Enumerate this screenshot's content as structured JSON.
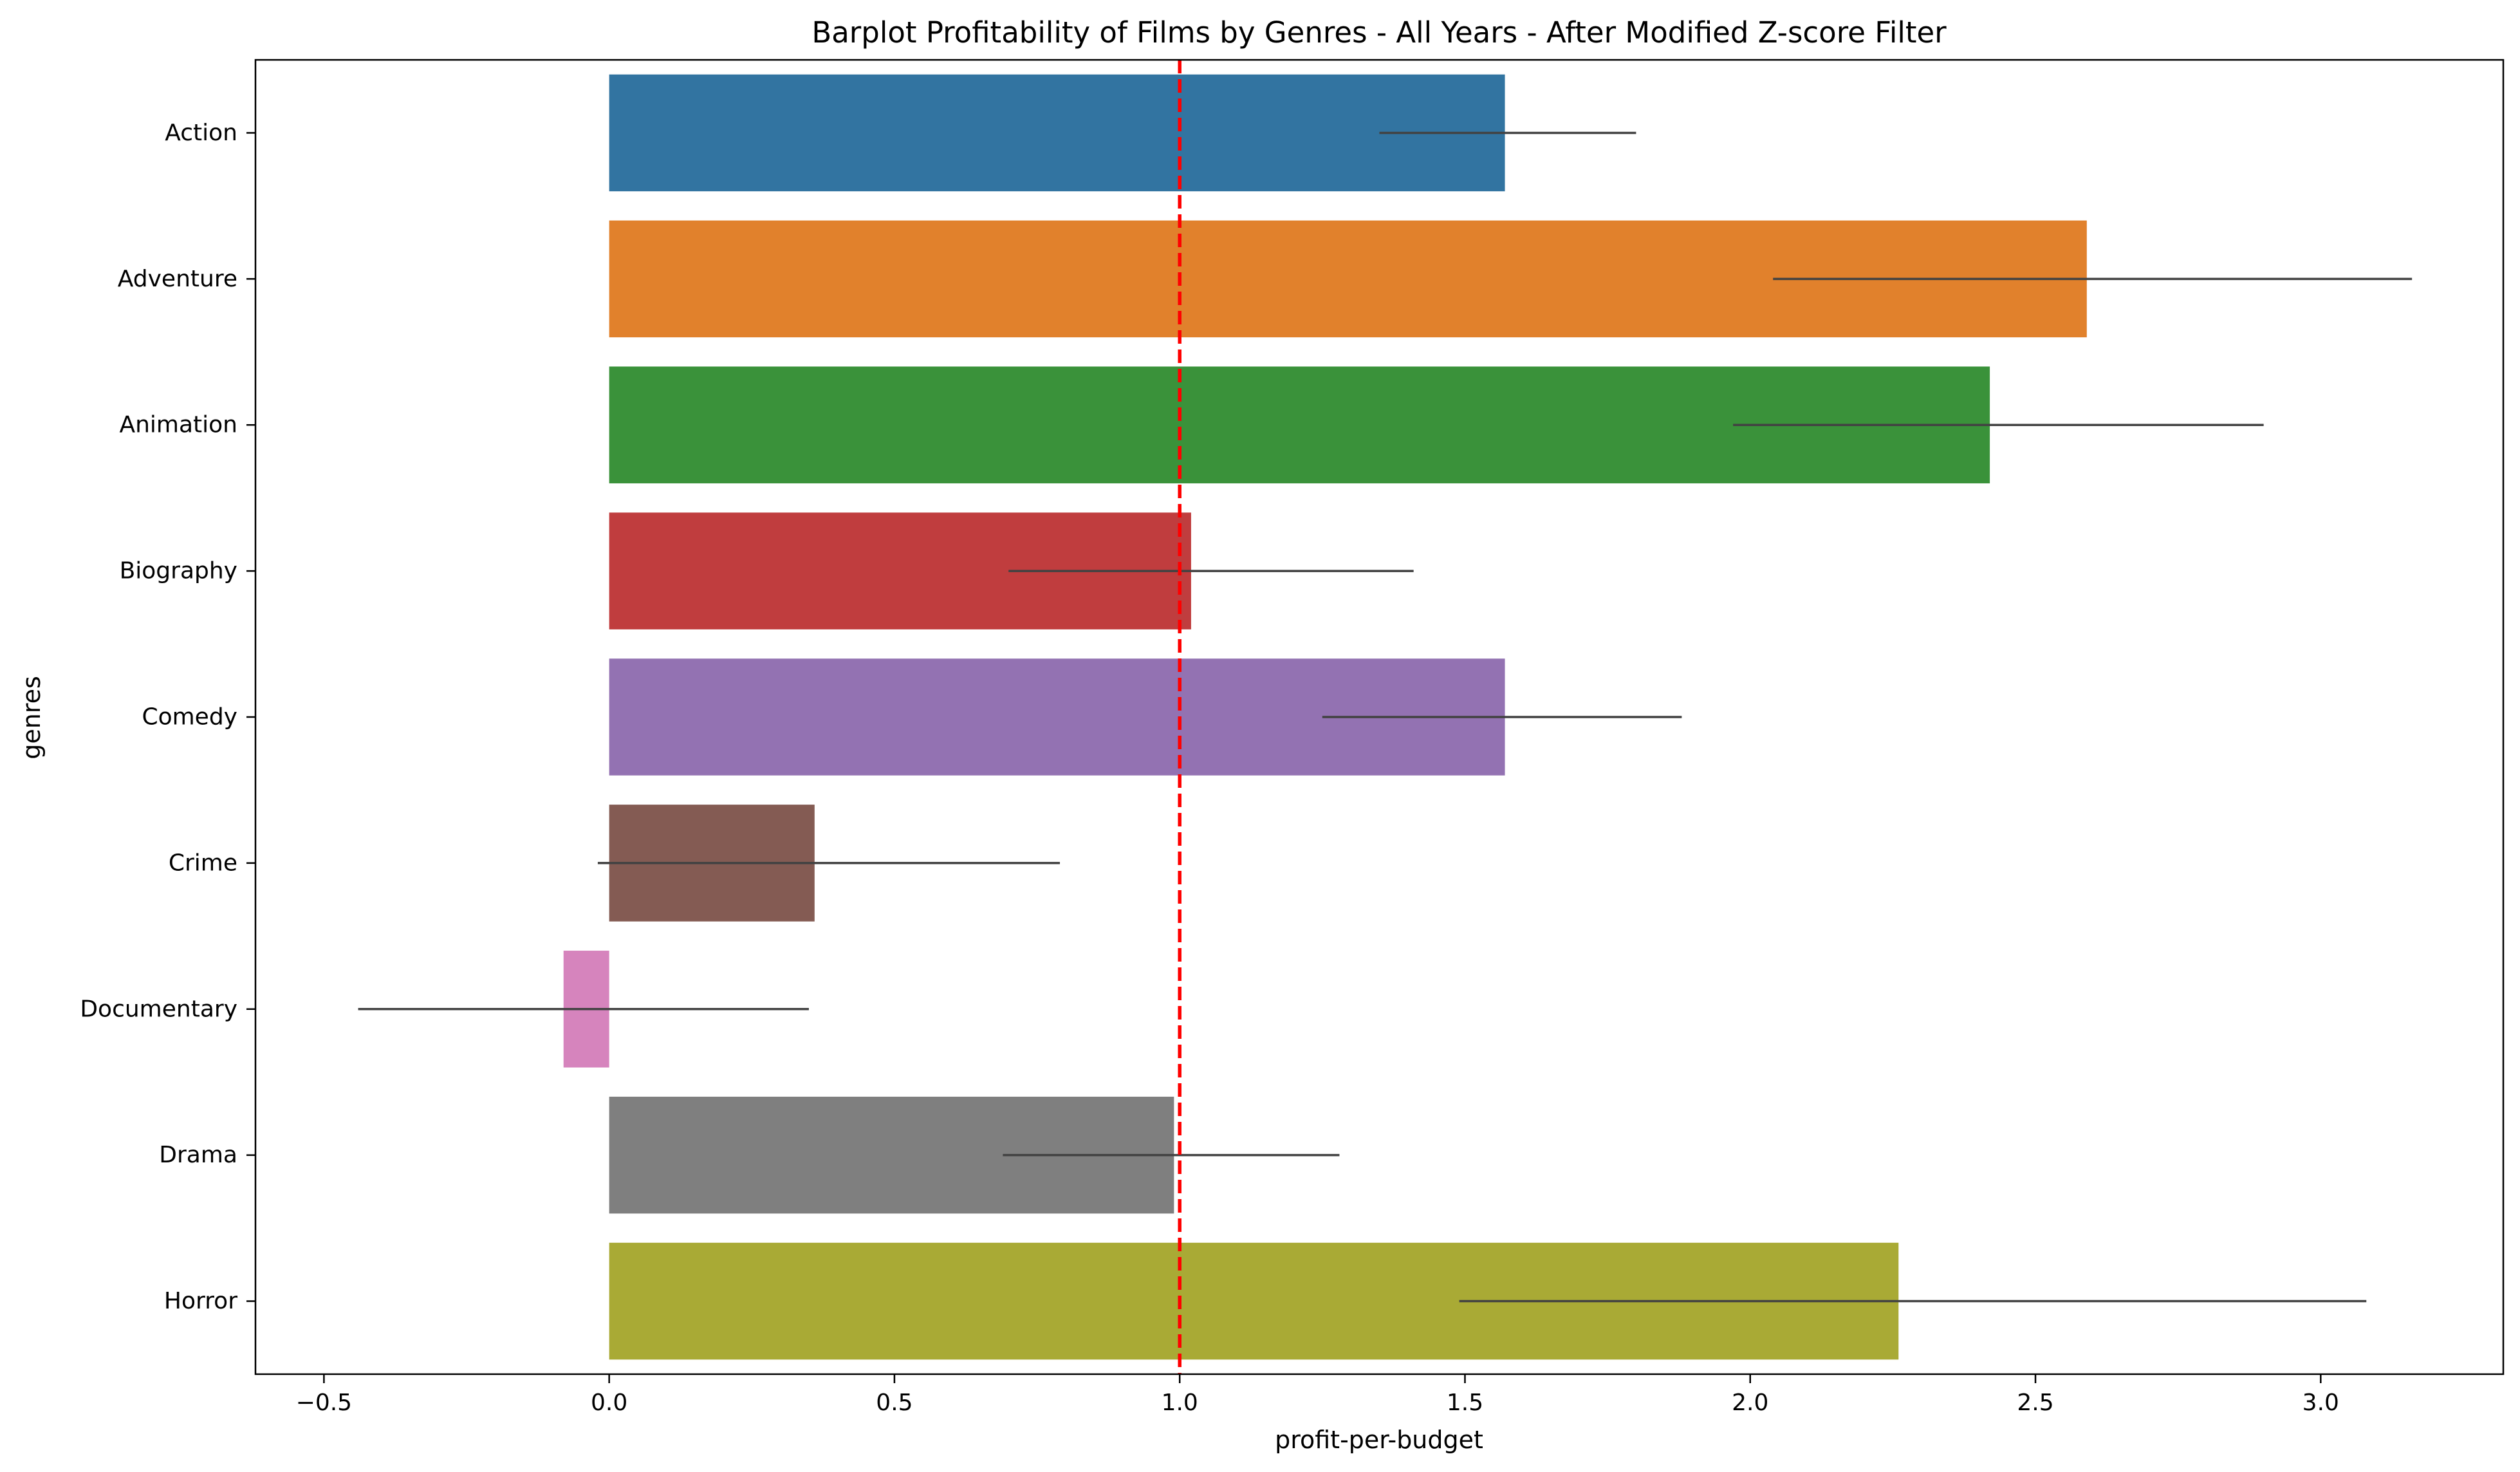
{
  "chart_data": {
    "type": "bar",
    "orientation": "horizontal",
    "title": "Barplot Profitability of Films by Genres - All Years - After Modified Z-score Filter",
    "xlabel": "profit-per-budget",
    "ylabel": "genres",
    "xlim": [
      -0.62,
      3.32
    ],
    "xticks": [
      -0.5,
      0.0,
      0.5,
      1.0,
      1.5,
      2.0,
      2.5,
      3.0
    ],
    "xtick_labels": [
      "−0.5",
      "0.0",
      "0.5",
      "1.0",
      "1.5",
      "2.0",
      "2.5",
      "3.0"
    ],
    "grid": false,
    "legend": "none",
    "reference_line": {
      "x": 1.0,
      "color": "#ff0000",
      "style": "dashed"
    },
    "errorbar_color": "#424242",
    "categories": [
      "Action",
      "Adventure",
      "Animation",
      "Biography",
      "Comedy",
      "Crime",
      "Documentary",
      "Drama",
      "Horror"
    ],
    "values": [
      1.57,
      2.59,
      2.42,
      1.02,
      1.57,
      0.36,
      -0.08,
      0.99,
      2.26
    ],
    "error_low": [
      1.35,
      2.04,
      1.97,
      0.7,
      1.25,
      -0.02,
      -0.44,
      0.69,
      1.49
    ],
    "error_high": [
      1.8,
      3.16,
      2.9,
      1.41,
      1.88,
      0.79,
      0.35,
      1.28,
      3.08
    ],
    "colors": [
      "#3274a1",
      "#e1812c",
      "#3a923a",
      "#c03d3e",
      "#9372b2",
      "#845b53",
      "#d684bd",
      "#7f7f7f",
      "#a9aa35"
    ]
  }
}
